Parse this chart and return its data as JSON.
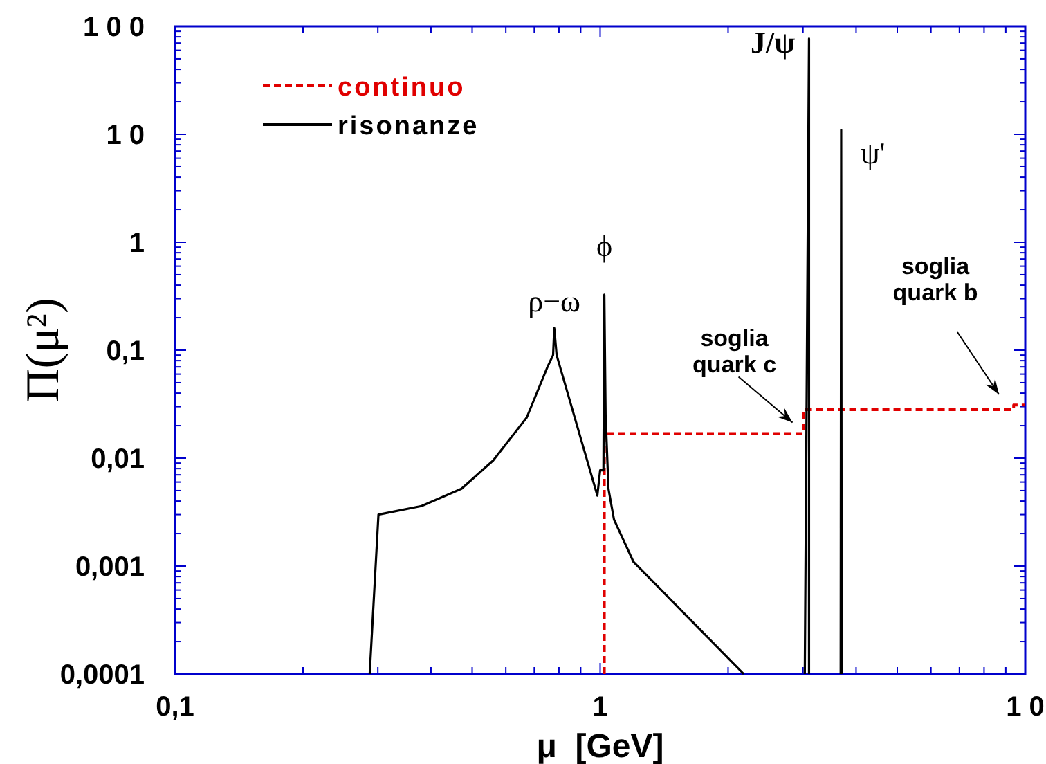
{
  "chart_data": {
    "type": "line",
    "xlabel": "μ  [GeV]",
    "ylabel": "Π(μ²)",
    "log": "xy",
    "xlim": [
      0.1,
      10
    ],
    "ylim": [
      0.0001,
      100
    ],
    "xticks": [
      {
        "value": 0.1,
        "label": "0,1"
      },
      {
        "value": 0.2,
        "label": null
      },
      {
        "value": 0.3,
        "label": null
      },
      {
        "value": 0.4,
        "label": null
      },
      {
        "value": 0.5,
        "label": null
      },
      {
        "value": 0.6,
        "label": null
      },
      {
        "value": 0.7,
        "label": null
      },
      {
        "value": 0.8,
        "label": null
      },
      {
        "value": 0.9,
        "label": null
      },
      1,
      {
        "value": 2,
        "label": null
      },
      {
        "value": 3,
        "label": null
      },
      {
        "value": 4,
        "label": null
      },
      {
        "value": 5,
        "label": null
      },
      {
        "value": 6,
        "label": null
      },
      {
        "value": 7,
        "label": null
      },
      {
        "value": 8,
        "label": null
      },
      {
        "value": 9,
        "label": null
      },
      {
        "value": 10,
        "label": "1 0"
      }
    ],
    "yticks": [
      {
        "value": 0.0001,
        "label": "0,0001"
      },
      {
        "value": 0.001,
        "label": "0,001"
      },
      {
        "value": 0.01,
        "label": "0,01"
      },
      {
        "value": 0.1,
        "label": "0,1"
      },
      1,
      {
        "value": 10,
        "label": "1 0"
      },
      {
        "value": 100,
        "label": "1 0 0"
      }
    ],
    "grid": false,
    "legend": "top left",
    "marker": "none",
    "series": [
      {
        "name": "continuo",
        "color": "#e00000",
        "line_style": "dashed",
        "x": [
          1.023,
          1.023,
          3.01,
          3.01,
          9.39,
          9.39,
          10
        ],
        "values": [
          0.0001,
          0.0169,
          0.0169,
          0.0281,
          0.0281,
          0.031,
          0.031
        ]
      },
      {
        "name": "risonanze",
        "color": "#000000",
        "line_style": "solid",
        "x": [
          0.287,
          0.301,
          0.38,
          0.472,
          0.56,
          0.672,
          0.752,
          0.775,
          0.78,
          0.79,
          0.985,
          1.0,
          1.018,
          1.023,
          1.03,
          1.046,
          1.078,
          1.197,
          2.177,
          2.6,
          3.03,
          3.1,
          3.1,
          3.4,
          3.68,
          3.69,
          3.7
        ],
        "values": [
          0.0001,
          0.003,
          0.0036,
          0.0052,
          0.0095,
          0.0238,
          0.07,
          0.09,
          0.16,
          0.09,
          0.0045,
          0.0077,
          0.0077,
          0.326,
          0.025,
          0.0052,
          0.0027,
          0.0011,
          0.0001,
          null,
          0.0001,
          77,
          0.0001,
          null,
          0.0001,
          11,
          0.0001
        ]
      }
    ],
    "annotations": [
      {
        "text": "ρ−ω",
        "x": 0.78,
        "y": 0.16
      },
      {
        "text": "ϕ",
        "x": 1.023,
        "y": 0.326
      },
      {
        "text": "J/ψ",
        "x": 3.1,
        "y": 77
      },
      {
        "text": "ψ'",
        "x": 3.69,
        "y": 11
      },
      {
        "text": "soglia\nquark c",
        "x": 3.01,
        "y": 0.0169
      },
      "soglia\nquark b"
    ]
  }
}
